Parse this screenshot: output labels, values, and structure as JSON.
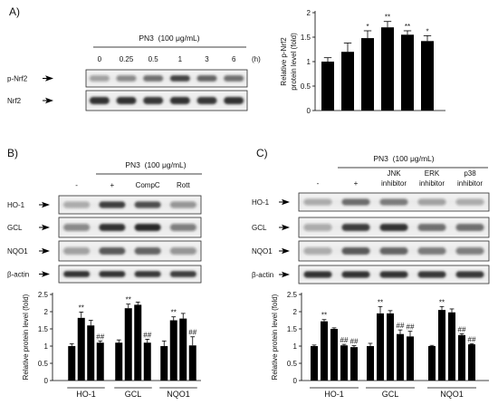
{
  "panels": {
    "a": {
      "label": "A)",
      "treatment": "PN3  (100 μg/mL)",
      "lanes": [
        "0",
        "0.25",
        "0.5",
        "1",
        "3",
        "6"
      ],
      "lane_unit": "(h)",
      "blots": [
        {
          "label": "p-Nrf2",
          "band_intensity": [
            0.35,
            0.45,
            0.6,
            0.8,
            0.65,
            0.6
          ]
        },
        {
          "label": "Nrf2",
          "band_intensity": [
            0.9,
            0.9,
            0.88,
            0.9,
            0.88,
            0.9
          ]
        }
      ]
    },
    "b": {
      "label": "B)",
      "treatment": "PN3  (100 μg/mL)",
      "lanes": [
        [
          "-"
        ],
        [
          "+"
        ],
        [
          "CompC"
        ],
        [
          "Rott"
        ]
      ],
      "blots": [
        {
          "label": "HO-1",
          "band_intensity": [
            0.3,
            0.85,
            0.75,
            0.4
          ]
        },
        {
          "label": "GCL",
          "band_intensity": [
            0.45,
            0.9,
            0.95,
            0.5
          ]
        },
        {
          "label": "NQO1",
          "band_intensity": [
            0.35,
            0.7,
            0.65,
            0.4
          ]
        },
        {
          "label": "β-actin",
          "band_intensity": [
            0.9,
            0.9,
            0.88,
            0.85
          ]
        }
      ]
    },
    "c": {
      "label": "C)",
      "treatment": "PN3  (100 μg/mL)",
      "lanes": [
        [
          "-"
        ],
        [
          "+"
        ],
        [
          "JNK",
          "inhibitor"
        ],
        [
          "ERK",
          "inhibitor"
        ],
        [
          "p38",
          "inhibitor"
        ]
      ],
      "blots": [
        {
          "label": "HO-1",
          "band_intensity": [
            0.3,
            0.62,
            0.55,
            0.35,
            0.3
          ]
        },
        {
          "label": "GCL",
          "band_intensity": [
            0.3,
            0.85,
            0.9,
            0.6,
            0.6
          ]
        },
        {
          "label": "NQO1",
          "band_intensity": [
            0.3,
            0.7,
            0.65,
            0.55,
            0.5
          ]
        },
        {
          "label": "β-actin",
          "band_intensity": [
            0.9,
            0.9,
            0.9,
            0.88,
            0.88
          ]
        }
      ]
    }
  },
  "chart_data": [
    {
      "type": "bar",
      "ylabel": [
        "Relative p-Nrf2",
        "protein level (fold)"
      ],
      "ylim": [
        0,
        2
      ],
      "yticks": [
        0,
        0.5,
        1,
        1.5,
        2
      ],
      "values": [
        1.0,
        1.2,
        1.48,
        1.7,
        1.55,
        1.42
      ],
      "errors": [
        0.08,
        0.18,
        0.15,
        0.12,
        0.08,
        0.11
      ],
      "significance": [
        "",
        "",
        "*",
        "**",
        "**",
        "*"
      ]
    },
    {
      "type": "bar",
      "ylabel": "Relative protein level (fold)",
      "ylim": [
        0,
        2.5
      ],
      "yticks": [
        0,
        0.5,
        1,
        1.5,
        2,
        2.5
      ],
      "categories": [
        "HO-1",
        "GCL",
        "NQO1"
      ],
      "series": [
        {
          "values": [
            1.0,
            1.1,
            1.0
          ],
          "errors": [
            0.07,
            0.08,
            0.15
          ],
          "significance": [
            "",
            "",
            ""
          ]
        },
        {
          "values": [
            1.82,
            2.1,
            1.75
          ],
          "errors": [
            0.17,
            0.12,
            0.1
          ],
          "significance": [
            "**",
            "**",
            "**"
          ]
        },
        {
          "values": [
            1.6,
            2.2,
            1.8
          ],
          "errors": [
            0.15,
            0.08,
            0.15
          ],
          "significance": [
            "",
            "",
            ""
          ]
        },
        {
          "values": [
            1.1,
            1.1,
            1.02
          ],
          "errors": [
            0.05,
            0.1,
            0.25
          ],
          "significance": [
            "##",
            "##",
            "##"
          ]
        }
      ]
    },
    {
      "type": "bar",
      "ylabel": "Relative protein level (fold)",
      "ylim": [
        0,
        2.5
      ],
      "yticks": [
        0,
        0.5,
        1,
        1.5,
        2,
        2.5
      ],
      "categories": [
        "HO-1",
        "GCL",
        "NQO1"
      ],
      "series": [
        {
          "values": [
            1.0,
            1.0,
            1.0
          ],
          "errors": [
            0.03,
            0.08,
            0.02
          ],
          "significance": [
            "",
            "",
            ""
          ]
        },
        {
          "values": [
            1.72,
            1.95,
            2.05
          ],
          "errors": [
            0.05,
            0.2,
            0.1
          ],
          "significance": [
            "**",
            "**",
            "**"
          ]
        },
        {
          "values": [
            1.5,
            1.95,
            1.98
          ],
          "errors": [
            0.03,
            0.08,
            0.1
          ],
          "significance": [
            "",
            "",
            ""
          ]
        },
        {
          "values": [
            1.02,
            1.35,
            1.32
          ],
          "errors": [
            0.03,
            0.12,
            0.04
          ],
          "significance": [
            "##",
            "##",
            "##"
          ]
        },
        {
          "values": [
            0.97,
            1.28,
            1.05
          ],
          "errors": [
            0.04,
            0.15,
            0.02
          ],
          "significance": [
            "##",
            "##",
            "##"
          ]
        }
      ]
    }
  ]
}
